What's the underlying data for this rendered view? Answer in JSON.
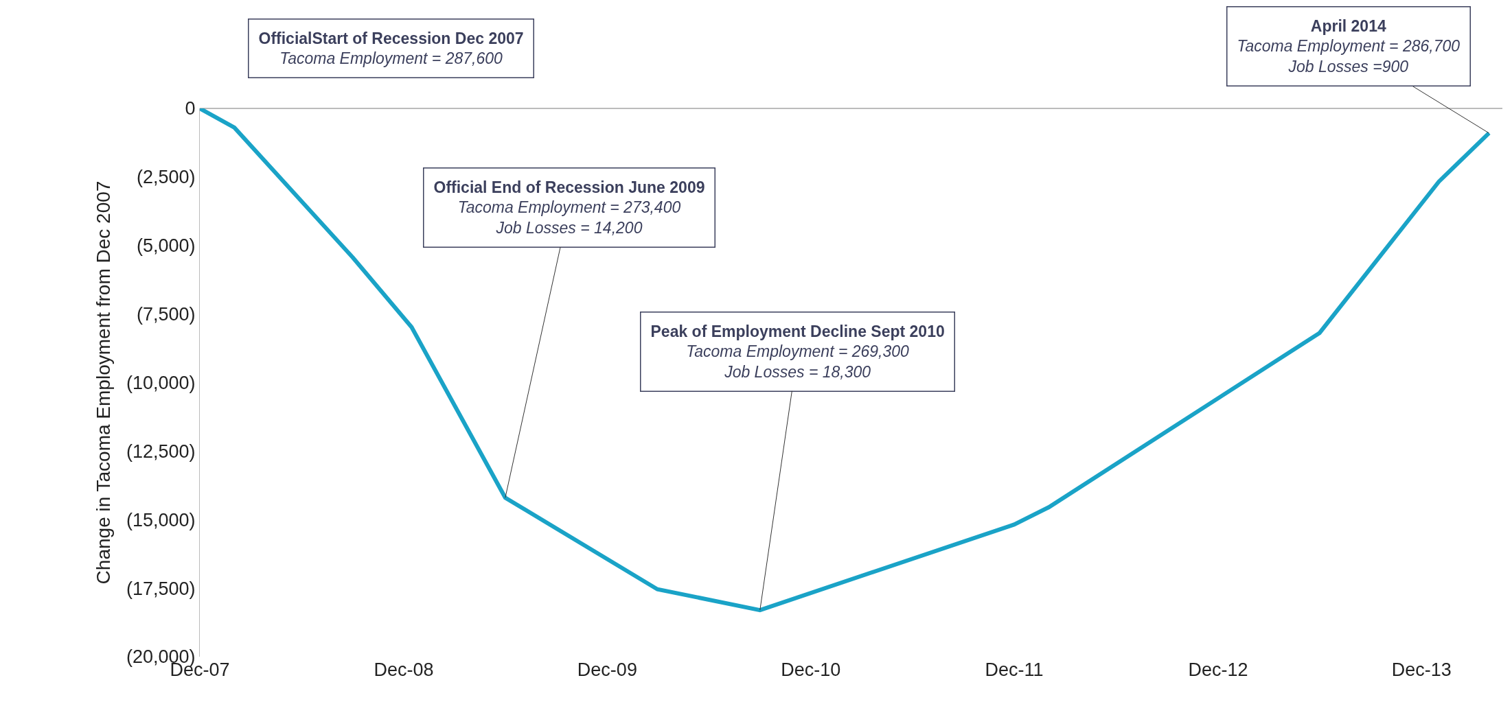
{
  "chart_data": {
    "type": "line",
    "ylabel": "Change in Tacoma Employment from Dec 2007",
    "x": [
      "2007-12",
      "2008-02",
      "2008-09",
      "2008-12-15",
      "2009-06",
      "2010-03",
      "2010-09",
      "2011-12",
      "2012-02",
      "2013-06",
      "2014-01",
      "2014-04"
    ],
    "series": [
      {
        "color": "#1aa3c7",
        "values": [
          0,
          -700,
          -5450,
          -7980,
          -14200,
          -17540,
          -18300,
          -15180,
          -14550,
          -8190,
          -2670,
          -900
        ]
      }
    ],
    "xlim": [
      "2007-12-01",
      "2014-04-25"
    ],
    "xticks": [
      {
        "value": "2007-12",
        "label": "Dec-07"
      },
      {
        "value": "2008-12",
        "label": "Dec-08"
      },
      {
        "value": "2009-12",
        "label": "Dec-09"
      },
      {
        "value": "2010-12",
        "label": "Dec-10"
      },
      {
        "value": "2011-12",
        "label": "Dec-11"
      },
      {
        "value": "2012-12",
        "label": "Dec-12"
      },
      {
        "value": "2013-12",
        "label": "Dec-13"
      }
    ],
    "ylim": [
      -20000,
      0
    ],
    "yticks": [
      0,
      {
        "value": -2500,
        "label": "(2,500)"
      },
      {
        "value": -5000,
        "label": "(5,000)"
      },
      {
        "value": -7500,
        "label": "(7,500)"
      },
      {
        "value": -10000,
        "label": "(10,000)"
      },
      {
        "value": -12500,
        "label": "(12,500)"
      },
      {
        "value": -15000,
        "label": "(15,000)"
      },
      {
        "value": -17500,
        "label": "(17,500)"
      },
      {
        "value": -20000,
        "label": "(20,000)"
      }
    ],
    "marker": "none",
    "line_style": "solid",
    "annotations": [
      "OfficialStart of Recession Dec 2007\nTacoma Employment = 287,600",
      {
        "text": "Official End of Recession June 2009\nTacoma Employment = 273,400\nJob Losses = 14,200",
        "x": "2009-06",
        "y": -14200
      },
      {
        "text": "Peak of Employment Decline Sept 2010\nTacoma Employment = 269,300\nJob Losses = 18,300",
        "x": "2010-09",
        "y": -18300
      },
      {
        "text": "April 2014\nTacoma Employment = 286,700\nJob Losses =900",
        "x": "2014-04",
        "y": -900
      }
    ]
  }
}
